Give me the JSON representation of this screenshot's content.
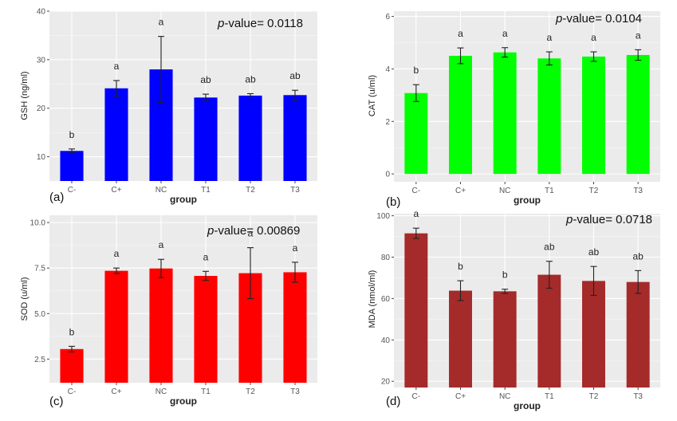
{
  "chart_data": [
    {
      "type": "bar",
      "panel_label": "(a)",
      "p_prefix": "p",
      "p_suffix": "-value= ",
      "p_value": "0.0118",
      "xlabel": "group",
      "ylabel": "GSH (ng/ml)",
      "color": "#0000ff",
      "ylim": [
        5,
        40
      ],
      "yticks": [
        10,
        20,
        30,
        40
      ],
      "ytick_labels": [
        "10",
        "20",
        "30",
        "40"
      ],
      "categories": [
        "C-",
        "C+",
        "NC",
        "T1",
        "T2",
        "T3"
      ],
      "values": [
        11.2,
        24.1,
        28.0,
        22.2,
        22.6,
        22.7
      ],
      "errors": [
        0.4,
        1.6,
        6.8,
        0.7,
        0.4,
        1.0
      ],
      "significance": [
        "b",
        "a",
        "a",
        "ab",
        "ab",
        "ab"
      ]
    },
    {
      "type": "bar",
      "panel_label": "(b)",
      "p_prefix": "p",
      "p_suffix": "-value= ",
      "p_value": "0.0104",
      "xlabel": "group",
      "ylabel": "CAT (u/ml)",
      "color": "#00ff00",
      "ylim": [
        -0.3,
        6.2
      ],
      "yticks": [
        0,
        2,
        4,
        6
      ],
      "ytick_labels": [
        "0",
        "2",
        "4",
        "6"
      ],
      "categories": [
        "C-",
        "C+",
        "NC",
        "T1",
        "T2",
        "T3"
      ],
      "values": [
        3.08,
        4.5,
        4.63,
        4.4,
        4.47,
        4.53
      ],
      "errors": [
        0.32,
        0.3,
        0.18,
        0.25,
        0.18,
        0.2
      ],
      "significance": [
        "b",
        "a",
        "a",
        "a",
        "a",
        "a"
      ]
    },
    {
      "type": "bar",
      "panel_label": "(c)",
      "p_prefix": "p",
      "p_suffix": "-value= ",
      "p_value": "0.00869",
      "xlabel": "group",
      "ylabel": "SOD (u/ml)",
      "color": "#ff0000",
      "ylim": [
        1.2,
        10.4
      ],
      "yticks": [
        2.5,
        5.0,
        7.5,
        10.0
      ],
      "ytick_labels": [
        "2.5",
        "5.0",
        "7.5",
        "10.0"
      ],
      "categories": [
        "C-",
        "C+",
        "NC",
        "T1",
        "T2",
        "T3"
      ],
      "values": [
        3.05,
        7.35,
        7.48,
        7.07,
        7.22,
        7.27
      ],
      "errors": [
        0.15,
        0.15,
        0.5,
        0.25,
        1.4,
        0.55
      ],
      "significance": [
        "b",
        "a",
        "a",
        "a",
        "a",
        "a"
      ]
    },
    {
      "type": "bar",
      "panel_label": "(d)",
      "p_prefix": "p",
      "p_suffix": "-value= ",
      "p_value": "0.0718",
      "xlabel": "group",
      "ylabel": "MDA (nmol/ml)",
      "color": "#a52a2a",
      "ylim": [
        17,
        101
      ],
      "yticks": [
        20,
        40,
        60,
        80,
        100
      ],
      "ytick_labels": [
        "20",
        "40",
        "60",
        "80",
        "100"
      ],
      "categories": [
        "C-",
        "C+",
        "NC",
        "T1",
        "T2",
        "T3"
      ],
      "values": [
        91.5,
        63.8,
        63.5,
        71.5,
        68.5,
        68.0
      ],
      "errors": [
        2.5,
        4.8,
        1.0,
        6.5,
        7.0,
        5.5
      ],
      "significance": [
        "a",
        "b",
        "b",
        "ab",
        "ab",
        "ab"
      ]
    }
  ]
}
